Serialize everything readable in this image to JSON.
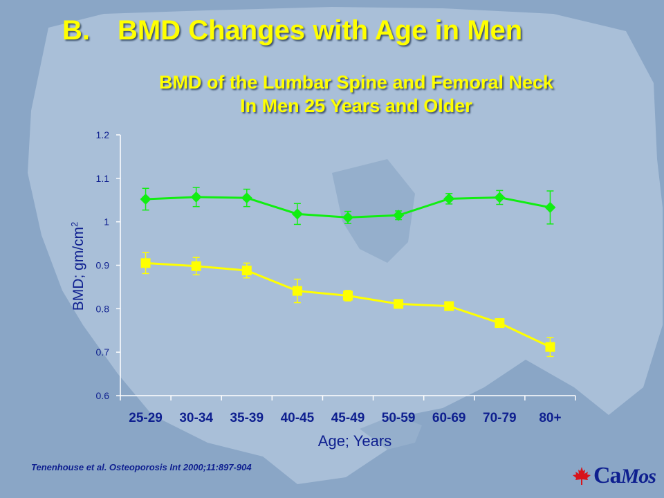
{
  "slide": {
    "letter": "B.",
    "title": "BMD Changes with Age in Men",
    "citation": "Tenenhouse et al. Osteoporosis Int 2000;11:897-904",
    "logo": {
      "prefix": "Ca",
      "suffix": "Mos",
      "icon": "maple-leaf-icon"
    }
  },
  "colors": {
    "background": "#8aa6c6",
    "map": "#a9bfd8",
    "title": "#ffff00",
    "axis_text": "#0e1f8f",
    "femoral_neck": "#ffff00",
    "lumbar_spine": "#11ee11"
  },
  "chart_data": {
    "type": "line",
    "title": "BMD of the Lumbar Spine and Femoral Neck",
    "subtitle": "In Men 25 Years and Older",
    "xlabel": "Age; Years",
    "ylabel": "BMD; gm/cm",
    "ylabel_superscript": "2",
    "ylim": [
      0.6,
      1.2
    ],
    "yticks": [
      "1.2",
      "1.1",
      "1",
      "0.9",
      "0.8",
      "0.7",
      "0.6"
    ],
    "categories": [
      "25-29",
      "30-34",
      "35-39",
      "40-45",
      "45-49",
      "50-59",
      "60-69",
      "70-79",
      "80+"
    ],
    "grid": false,
    "series": [
      {
        "marker": "diamond",
        "color": "#11ee11",
        "values": [
          1.052,
          1.057,
          1.055,
          1.018,
          1.01,
          1.015,
          1.053,
          1.056,
          1.033
        ],
        "error": [
          0.025,
          0.022,
          0.02,
          0.024,
          0.014,
          0.01,
          0.012,
          0.016,
          0.038
        ]
      },
      {
        "marker": "square",
        "color": "#ffff00",
        "values": [
          0.905,
          0.898,
          0.888,
          0.841,
          0.83,
          0.811,
          0.806,
          0.767,
          0.712
        ],
        "error": [
          0.024,
          0.02,
          0.017,
          0.027,
          0.012,
          0.007,
          0.006,
          0.006,
          0.022
        ]
      }
    ]
  }
}
